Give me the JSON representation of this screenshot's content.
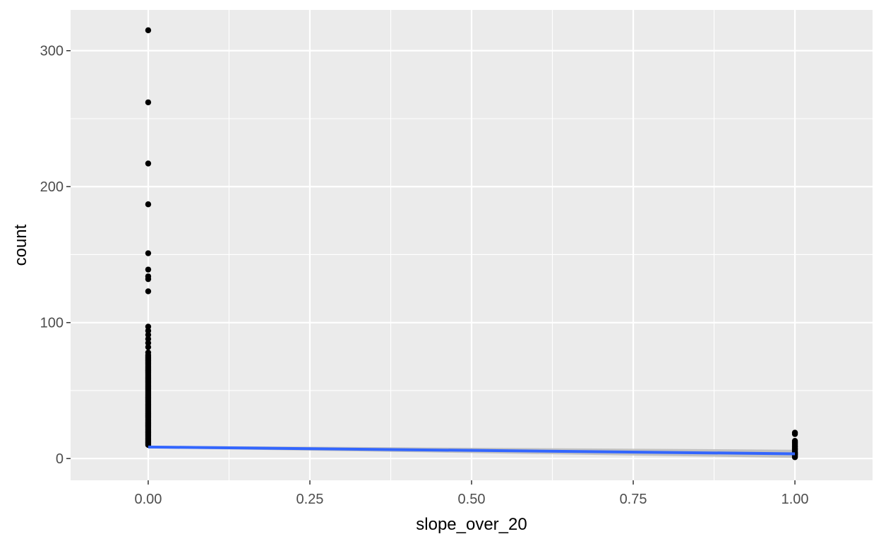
{
  "chart_data": {
    "type": "scatter",
    "xlabel": "slope_over_20",
    "ylabel": "count",
    "xlim": [
      -0.12,
      1.12
    ],
    "ylim": [
      -16,
      330
    ],
    "x_ticks": [
      0,
      0.25,
      0.5,
      0.75,
      1
    ],
    "x_tick_labels": [
      "0.00",
      "0.25",
      "0.50",
      "0.75",
      "1.00"
    ],
    "y_ticks": [
      0,
      100,
      200,
      300
    ],
    "y_tick_labels": [
      "0",
      "100",
      "200",
      "300"
    ],
    "grid": true,
    "legend": "none",
    "points": {
      "x": [
        0,
        0,
        0,
        0,
        0,
        0,
        0,
        0,
        0,
        0,
        0,
        0,
        0,
        0,
        0,
        0,
        0,
        0,
        0,
        0,
        0,
        0,
        0,
        0,
        0,
        0,
        0,
        0,
        0,
        0,
        0,
        0,
        0,
        0,
        0,
        0,
        0,
        0,
        0,
        0,
        0,
        0,
        0,
        0,
        0,
        0,
        0,
        0,
        0,
        0,
        0,
        0,
        0,
        0,
        0,
        0,
        0,
        0,
        0,
        0,
        0,
        0,
        0,
        0,
        0,
        0,
        0,
        0,
        0,
        0,
        0,
        0,
        0,
        0,
        0,
        0,
        0,
        0,
        0,
        0,
        0,
        0,
        0,
        1,
        1,
        1,
        1,
        1,
        1,
        1,
        1,
        1,
        1,
        1,
        1,
        1,
        1,
        1,
        1,
        1,
        1,
        1,
        1
      ],
      "y": [
        315,
        262,
        217,
        187,
        151,
        139,
        134,
        132,
        123,
        97,
        94,
        91,
        88,
        85,
        82,
        78,
        76,
        75,
        74,
        73,
        72,
        71,
        70,
        69,
        68,
        67,
        66,
        65,
        64,
        63,
        62,
        61,
        60,
        59,
        58,
        57,
        56,
        55,
        54,
        53,
        52,
        51,
        50,
        49,
        48,
        47,
        46,
        45,
        44,
        43,
        42,
        41,
        40,
        39,
        38,
        37,
        36,
        35,
        34,
        33,
        32,
        31,
        30,
        29,
        28,
        27,
        26,
        25,
        24,
        23,
        22,
        21,
        20,
        19,
        18,
        17,
        16,
        15,
        14,
        13,
        12,
        11,
        10,
        19,
        18,
        13,
        12,
        11,
        10,
        9,
        8,
        7,
        6,
        5,
        4,
        3,
        2,
        1,
        9,
        7,
        4,
        3,
        2
      ],
      "color": "#000000"
    },
    "smooth": {
      "method": "linear",
      "x": [
        0,
        1
      ],
      "y": [
        8.5,
        3.5
      ],
      "ci_lower": [
        7.6,
        0.5
      ],
      "ci_upper": [
        9.4,
        6.5
      ],
      "line_color": "#3366ff",
      "ribbon_color": "#bdbdbd"
    },
    "panel_background": "#ebebeb",
    "grid_color": "#ffffff"
  }
}
